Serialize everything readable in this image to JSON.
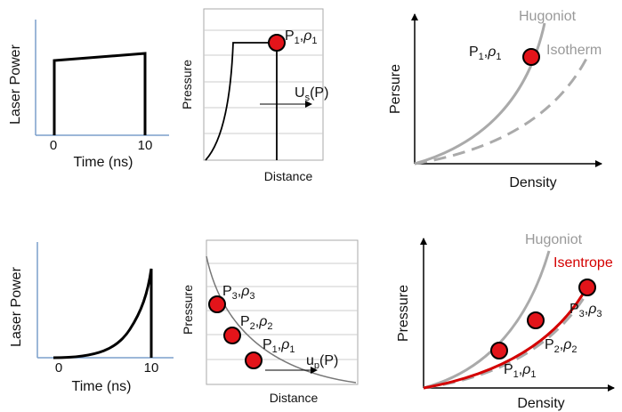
{
  "colors": {
    "axis_blue": "#7b9fcc",
    "curve_black": "#000000",
    "hugoniot": "#aaaaaa",
    "isotherm": "#aaaaaa",
    "isentrope": "#d40000",
    "marker_fill": "#e3141a",
    "grid": "#cccccc"
  },
  "top": {
    "laser": {
      "ylabel": "Laser Power",
      "xlabel": "Time (ns)",
      "tick_start": "0",
      "tick_end": "10"
    },
    "wave": {
      "ylabel": "Pressure",
      "xlabel": "Distance",
      "state_p": "P",
      "state_p_sub": "1",
      "state_rho": "ρ",
      "state_rho_sub": "1",
      "velocity": "U",
      "velocity_sub": "s",
      "velocity_arg": "(P)"
    },
    "eos": {
      "ylabel": "Persure",
      "xlabel": "Density",
      "hugoniot": "Hugoniot",
      "isotherm": "Isotherm",
      "state_p": "P",
      "state_p_sub": "1",
      "state_rho": "ρ",
      "state_rho_sub": "1"
    }
  },
  "bottom": {
    "laser": {
      "ylabel": "Laser Power",
      "xlabel": "Time (ns)",
      "tick_start": "0",
      "tick_end": "10"
    },
    "wave": {
      "ylabel": "Pressure",
      "xlabel": "Distance",
      "states": [
        {
          "p": "P",
          "p_sub": "3",
          "rho": "ρ",
          "rho_sub": "3"
        },
        {
          "p": "P",
          "p_sub": "2",
          "rho": "ρ",
          "rho_sub": "2"
        },
        {
          "p": "P",
          "p_sub": "1",
          "rho": "ρ",
          "rho_sub": "1"
        }
      ],
      "velocity": "u",
      "velocity_sub": "p",
      "velocity_arg": "(P)"
    },
    "eos": {
      "ylabel": "Pressure",
      "xlabel": "Density",
      "hugoniot": "Hugoniot",
      "isentrope": "Isentrope",
      "states": [
        {
          "p": "P",
          "p_sub": "3",
          "rho": "ρ",
          "rho_sub": "3"
        },
        {
          "p": "P",
          "p_sub": "2",
          "rho": "ρ",
          "rho_sub": "2"
        },
        {
          "p": "P",
          "p_sub": "1",
          "rho": "ρ",
          "rho_sub": "1"
        }
      ]
    }
  }
}
